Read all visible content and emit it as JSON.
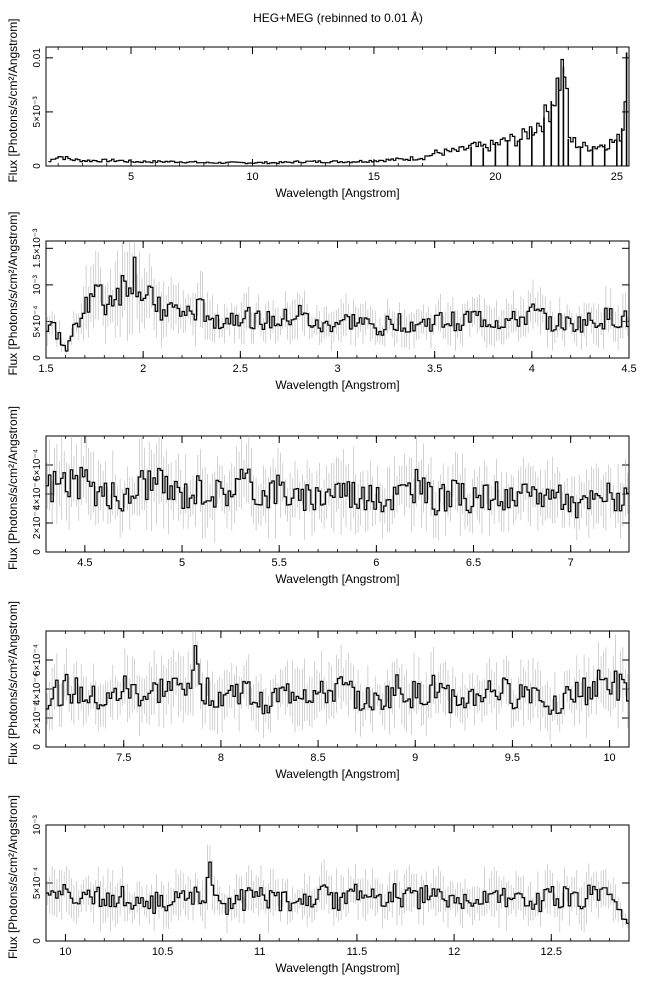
{
  "figure_title": "HEG+MEG (rebinned to 0.01 Å)",
  "colors": {
    "line": "#000000",
    "errorbar": "#b4b4b4",
    "axis": "#000000",
    "background": "#ffffff"
  },
  "chart_data": [
    {
      "type": "line",
      "xlabel": "Wavelength [Angstrom]",
      "ylabel": "Flux [Photons/s/cm²/Angstrom]",
      "xlim": [
        1.5,
        25.5
      ],
      "ylim": [
        0,
        0.011
      ],
      "xticks": [
        5,
        10,
        15,
        20,
        25
      ],
      "xtick_labels": [
        "5",
        "10",
        "15",
        "20",
        "25"
      ],
      "yticks": [
        0,
        0.005,
        0.01
      ],
      "ytick_labels": [
        "0",
        "5×10⁻³",
        "0.01"
      ],
      "series": [
        {
          "x": [
            1.6,
            1.8,
            2.0,
            2.5,
            3.0,
            3.5,
            4.0,
            4.5,
            5.0,
            5.5,
            6.0,
            7.0,
            8.0,
            9.0,
            10.0,
            11.0,
            12.0,
            13.0,
            14.0,
            15.0,
            16.0,
            17.0,
            17.5,
            18.0,
            18.5,
            19.0,
            19.5,
            20.0,
            20.5,
            21.0,
            21.5,
            22.0,
            22.3,
            22.6,
            22.8,
            23.0,
            23.5,
            24.0,
            24.5,
            25.0,
            25.2,
            25.4
          ],
          "y": [
            0.0004,
            0.0008,
            0.0009,
            0.0006,
            0.0005,
            0.0005,
            0.0005,
            0.0005,
            0.0004,
            0.0004,
            0.0004,
            0.0004,
            0.0003,
            0.0003,
            0.0003,
            0.0003,
            0.0004,
            0.0004,
            0.0004,
            0.0005,
            0.0006,
            0.0008,
            0.0012,
            0.0013,
            0.0014,
            0.0018,
            0.0017,
            0.002,
            0.0024,
            0.0025,
            0.0035,
            0.0045,
            0.006,
            0.0082,
            0.0092,
            0.0025,
            0.0018,
            0.0018,
            0.002,
            0.0024,
            0.0035,
            0.0105
          ]
        }
      ]
    },
    {
      "type": "line",
      "xlabel": "Wavelength [Angstrom]",
      "ylabel": "Flux [Photons/s/cm²/Angstrom]",
      "xlim": [
        1.5,
        4.5
      ],
      "ylim": [
        0,
        0.0016
      ],
      "xticks": [
        1.5,
        2,
        2.5,
        3,
        3.5,
        4,
        4.5
      ],
      "xtick_labels": [
        "1.5",
        "2",
        "2.5",
        "3",
        "3.5",
        "4",
        "4.5"
      ],
      "yticks": [
        0,
        0.0005,
        0.001,
        0.0015
      ],
      "ytick_labels": [
        "0",
        "5×10⁻⁴",
        "10⁻³",
        "1.5×10⁻³"
      ],
      "series": [
        {
          "x": [
            1.5,
            1.55,
            1.6,
            1.65,
            1.7,
            1.75,
            1.8,
            1.85,
            1.9,
            1.95,
            2.0,
            2.1,
            2.2,
            2.3,
            2.4,
            2.5,
            2.6,
            2.7,
            2.8,
            2.9,
            3.0,
            3.1,
            3.2,
            3.3,
            3.4,
            3.5,
            3.6,
            3.7,
            3.8,
            3.9,
            4.0,
            4.1,
            4.2,
            4.3,
            4.4,
            4.5
          ],
          "y": [
            0.0005,
            0.00035,
            0.0001,
            0.0005,
            0.0008,
            0.0009,
            0.0007,
            0.0009,
            0.001,
            0.0012,
            0.0008,
            0.0007,
            0.0006,
            0.00065,
            0.0005,
            0.0006,
            0.0005,
            0.0005,
            0.0006,
            0.0004,
            0.0005,
            0.0005,
            0.0004,
            0.0005,
            0.00045,
            0.0005,
            0.0005,
            0.00055,
            0.0005,
            0.0005,
            0.0006,
            0.0005,
            0.00045,
            0.0005,
            0.00055,
            0.0005
          ]
        }
      ]
    },
    {
      "type": "line",
      "xlabel": "Wavelength [Angstrom]",
      "ylabel": "Flux [Photons/s/cm²/Angstrom]",
      "xlim": [
        4.3,
        7.3
      ],
      "ylim": [
        0,
        0.0008
      ],
      "xticks": [
        4.5,
        5,
        5.5,
        6,
        6.5,
        7
      ],
      "xtick_labels": [
        "4.5",
        "5",
        "5.5",
        "6",
        "6.5",
        "7"
      ],
      "yticks": [
        0,
        0.0002,
        0.0004,
        0.0006
      ],
      "ytick_labels": [
        "0",
        "2×10⁻⁴",
        "4×10⁻⁴",
        "6×10⁻⁴"
      ],
      "series": [
        {
          "x": [
            4.3,
            4.4,
            4.5,
            4.6,
            4.7,
            4.8,
            4.9,
            5.0,
            5.1,
            5.2,
            5.3,
            5.4,
            5.5,
            5.6,
            5.7,
            5.8,
            5.9,
            6.0,
            6.1,
            6.2,
            6.3,
            6.4,
            6.5,
            6.6,
            6.7,
            6.8,
            6.9,
            7.0,
            7.1,
            7.2,
            7.3
          ],
          "y": [
            0.00045,
            0.0005,
            0.00045,
            0.0004,
            0.00035,
            0.0005,
            0.00045,
            0.0004,
            0.00045,
            0.0004,
            0.0005,
            0.0004,
            0.00045,
            0.00035,
            0.0004,
            0.00045,
            0.0004,
            0.00035,
            0.0004,
            0.00045,
            0.00035,
            0.0004,
            0.00035,
            0.0004,
            0.00035,
            0.0004,
            0.0004,
            0.0003,
            0.00035,
            0.0004,
            0.00035
          ]
        }
      ]
    },
    {
      "type": "line",
      "xlabel": "Wavelength [Angstrom]",
      "ylabel": "Flux [Photons/s/cm²/Angstrom]",
      "xlim": [
        7.1,
        10.1
      ],
      "ylim": [
        0,
        0.0008
      ],
      "xticks": [
        7.5,
        8,
        8.5,
        9,
        9.5,
        10
      ],
      "xtick_labels": [
        "7.5",
        "8",
        "8.5",
        "9",
        "9.5",
        "10"
      ],
      "yticks": [
        0,
        0.0002,
        0.0004,
        0.0006
      ],
      "ytick_labels": [
        "0",
        "2×10⁻⁴",
        "4×10⁻⁴",
        "6×10⁻⁴"
      ],
      "series": [
        {
          "x": [
            7.1,
            7.2,
            7.3,
            7.4,
            7.5,
            7.6,
            7.7,
            7.8,
            7.85,
            7.9,
            8.0,
            8.1,
            8.2,
            8.3,
            8.4,
            8.5,
            8.6,
            8.7,
            8.8,
            8.9,
            9.0,
            9.1,
            9.2,
            9.3,
            9.4,
            9.5,
            9.6,
            9.7,
            9.8,
            9.9,
            10.0,
            10.1
          ],
          "y": [
            0.00035,
            0.0004,
            0.00035,
            0.0003,
            0.0004,
            0.00035,
            0.0004,
            0.0004,
            0.0006,
            0.0004,
            0.00035,
            0.0004,
            0.0003,
            0.00035,
            0.0004,
            0.00035,
            0.0004,
            0.00035,
            0.0003,
            0.0004,
            0.00035,
            0.0004,
            0.0003,
            0.00035,
            0.0004,
            0.00035,
            0.0004,
            0.0003,
            0.00035,
            0.0004,
            0.00045,
            0.00035
          ]
        }
      ]
    },
    {
      "type": "line",
      "xlabel": "Wavelength [Angstrom]",
      "ylabel": "Flux [Photons/s/cm²/Angstrom]",
      "xlim": [
        9.9,
        12.9
      ],
      "ylim": [
        0,
        0.001
      ],
      "xticks": [
        10,
        10.5,
        11,
        11.5,
        12,
        12.5
      ],
      "xtick_labels": [
        "10",
        "10.5",
        "11",
        "11.5",
        "12",
        "12.5"
      ],
      "yticks": [
        0,
        0.0005,
        0.001
      ],
      "ytick_labels": [
        "0",
        "5×10⁻⁴",
        "10⁻³"
      ],
      "series": [
        {
          "x": [
            9.9,
            10.0,
            10.1,
            10.2,
            10.3,
            10.4,
            10.5,
            10.6,
            10.7,
            10.75,
            10.8,
            10.9,
            11.0,
            11.1,
            11.2,
            11.3,
            11.4,
            11.5,
            11.6,
            11.7,
            11.8,
            11.9,
            12.0,
            12.1,
            12.2,
            12.3,
            12.4,
            12.5,
            12.6,
            12.7,
            12.8,
            12.9
          ],
          "y": [
            0.0004,
            0.0004,
            0.00035,
            0.0004,
            0.0004,
            0.0003,
            0.00035,
            0.00035,
            0.0004,
            0.0006,
            0.0003,
            0.00035,
            0.0004,
            0.00035,
            0.0003,
            0.0004,
            0.00035,
            0.0004,
            0.00035,
            0.0004,
            0.00035,
            0.0004,
            0.0003,
            0.00035,
            0.0004,
            0.00035,
            0.0003,
            0.0004,
            0.00035,
            0.0004,
            0.00035,
            0.0001
          ]
        }
      ]
    }
  ]
}
